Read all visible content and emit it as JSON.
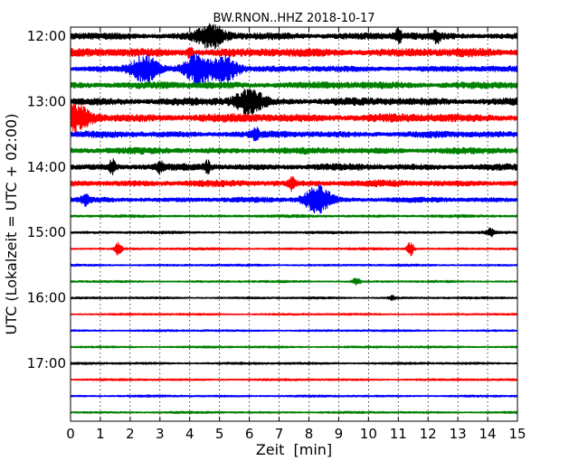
{
  "chart_data": {
    "type": "line",
    "title": "BW.RNON..HHZ 2018-10-17",
    "xlabel": "Zeit  [min]",
    "ylabel": "UTC (Lokalzeit = UTC + 02:00)",
    "xlim": [
      0,
      15
    ],
    "x_ticks": [
      "0",
      "1",
      "2",
      "3",
      "4",
      "5",
      "6",
      "7",
      "8",
      "9",
      "10",
      "11",
      "12",
      "13",
      "14",
      "15"
    ],
    "y_ticks": [
      "12:00",
      "13:00",
      "14:00",
      "15:00",
      "16:00",
      "17:00"
    ],
    "grid": "vertical dotted at each minute",
    "color_cycle": [
      "#000000",
      "#ff0000",
      "#0000ff",
      "#008000"
    ],
    "traces": [
      {
        "start": "12:00",
        "amplitude": 0.55,
        "events": [
          {
            "t": 4.7,
            "amp": 1.5
          },
          {
            "t": 11.0,
            "amp": 0.8
          },
          {
            "t": 12.3,
            "amp": 0.7
          }
        ]
      },
      {
        "start": "12:15",
        "amplitude": 0.65,
        "events": [
          {
            "t": 4.0,
            "amp": 0.6
          }
        ]
      },
      {
        "start": "12:30",
        "amplitude": 0.45,
        "events": [
          {
            "t": 2.5,
            "amp": 1.8
          },
          {
            "t": 4.3,
            "amp": 2.0
          },
          {
            "t": 5.2,
            "amp": 1.7
          }
        ]
      },
      {
        "start": "12:45",
        "amplitude": 0.55,
        "events": []
      },
      {
        "start": "13:00",
        "amplitude": 0.6,
        "events": [
          {
            "t": 6.0,
            "amp": 1.6
          }
        ]
      },
      {
        "start": "13:15",
        "amplitude": 0.65,
        "events": [
          {
            "t": 0.2,
            "amp": 1.6
          }
        ]
      },
      {
        "start": "13:30",
        "amplitude": 0.5,
        "events": [
          {
            "t": 6.2,
            "amp": 0.7
          }
        ]
      },
      {
        "start": "13:45",
        "amplitude": 0.5,
        "events": []
      },
      {
        "start": "14:00",
        "amplitude": 0.5,
        "events": [
          {
            "t": 1.4,
            "amp": 0.9
          },
          {
            "t": 3.0,
            "amp": 0.7
          },
          {
            "t": 4.6,
            "amp": 0.7
          }
        ]
      },
      {
        "start": "14:15",
        "amplitude": 0.5,
        "events": [
          {
            "t": 7.4,
            "amp": 0.8
          }
        ]
      },
      {
        "start": "14:30",
        "amplitude": 0.4,
        "events": [
          {
            "t": 8.3,
            "amp": 1.8
          },
          {
            "t": 0.5,
            "amp": 0.6
          }
        ]
      },
      {
        "start": "14:45",
        "amplitude": 0.22,
        "events": []
      },
      {
        "start": "15:00",
        "amplitude": 0.2,
        "events": [
          {
            "t": 14.1,
            "amp": 0.6
          }
        ]
      },
      {
        "start": "15:15",
        "amplitude": 0.18,
        "events": [
          {
            "t": 1.6,
            "amp": 0.8
          },
          {
            "t": 11.4,
            "amp": 1.0
          }
        ]
      },
      {
        "start": "15:30",
        "amplitude": 0.17,
        "events": []
      },
      {
        "start": "15:45",
        "amplitude": 0.17,
        "events": [
          {
            "t": 9.6,
            "amp": 0.5
          }
        ]
      },
      {
        "start": "16:00",
        "amplitude": 0.17,
        "events": [
          {
            "t": 10.8,
            "amp": 0.3
          }
        ]
      },
      {
        "start": "16:15",
        "amplitude": 0.16,
        "events": []
      },
      {
        "start": "16:30",
        "amplitude": 0.16,
        "events": []
      },
      {
        "start": "16:45",
        "amplitude": 0.17,
        "events": []
      },
      {
        "start": "17:00",
        "amplitude": 0.18,
        "events": []
      },
      {
        "start": "17:15",
        "amplitude": 0.17,
        "events": []
      },
      {
        "start": "17:30",
        "amplitude": 0.17,
        "events": []
      },
      {
        "start": "17:45",
        "amplitude": 0.17,
        "events": []
      }
    ]
  }
}
